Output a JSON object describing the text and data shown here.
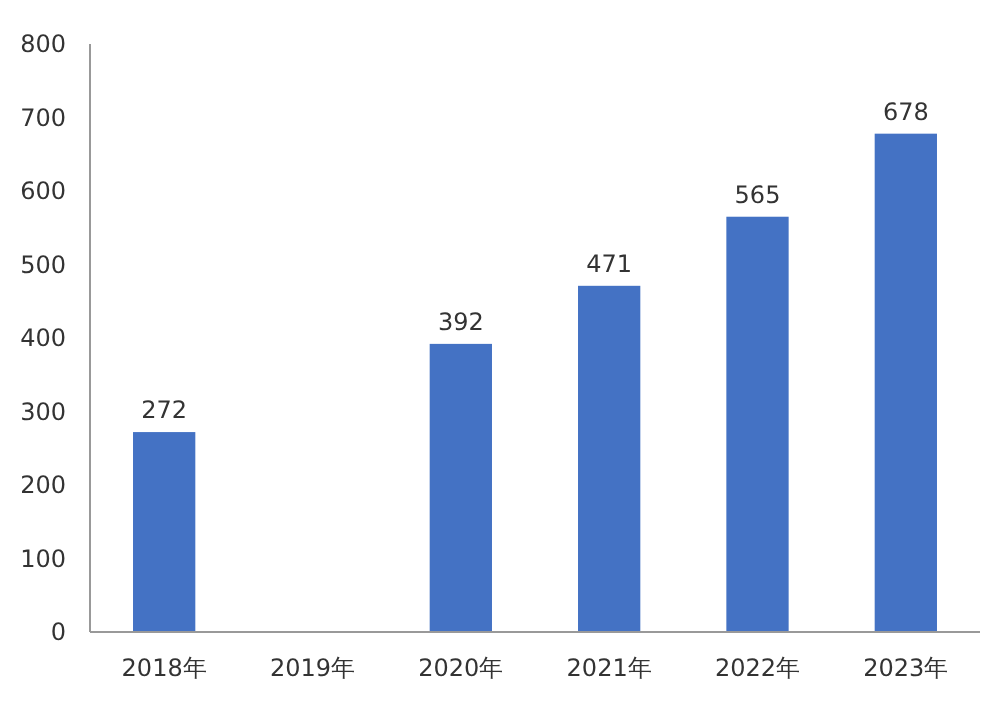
{
  "chart_data": {
    "type": "bar",
    "categories": [
      "2018年",
      "2019年",
      "2020年",
      "2021年",
      "2022年",
      "2023年"
    ],
    "values": [
      272,
      null,
      392,
      471,
      565,
      678
    ],
    "value_labels": [
      "272",
      null,
      "392",
      "471",
      "565",
      "678"
    ],
    "color": "#4472c4",
    "ylim": [
      0,
      800
    ],
    "yticks": [
      0,
      100,
      200,
      300,
      400,
      500,
      600,
      700,
      800
    ],
    "grid": false
  }
}
